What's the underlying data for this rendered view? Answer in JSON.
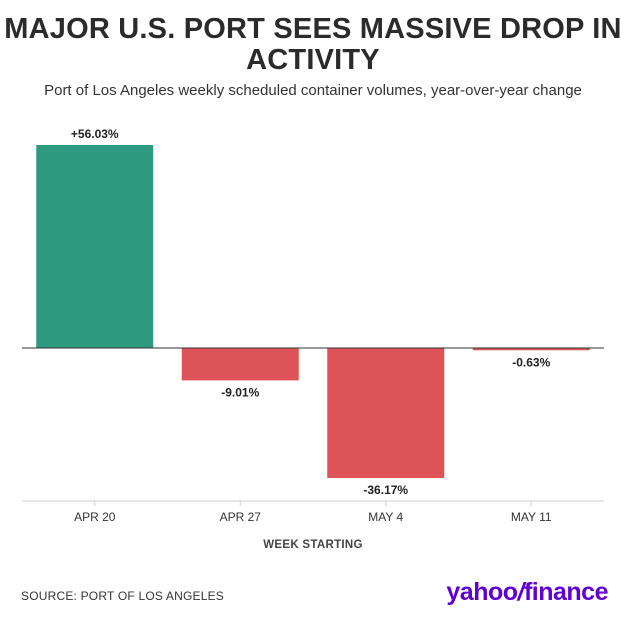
{
  "chart_data": {
    "type": "bar",
    "title": "MAJOR U.S. PORT SEES MASSIVE DROP IN ACTIVITY",
    "subtitle": "Port of Los Angeles weekly scheduled container volumes, year-over-year change",
    "xlabel": "WEEK STARTING",
    "ylabel": "",
    "categories": [
      "APR 20",
      "APR 27",
      "MAY 4",
      "MAY 11"
    ],
    "values": [
      56.03,
      -9.01,
      -36.17,
      -0.63
    ],
    "value_labels": [
      "+56.03%",
      "-9.01%",
      "-36.17%",
      "-0.63%"
    ],
    "ylim": [
      -36.17,
      56.03
    ],
    "colors": {
      "positive": "#2e9a7f",
      "negative": "#dd5357"
    }
  },
  "footer": {
    "source": "SOURCE: PORT OF LOS ANGELES",
    "logo_word": "yahoo",
    "logo_sep": "/",
    "logo_suffix": "finance"
  }
}
